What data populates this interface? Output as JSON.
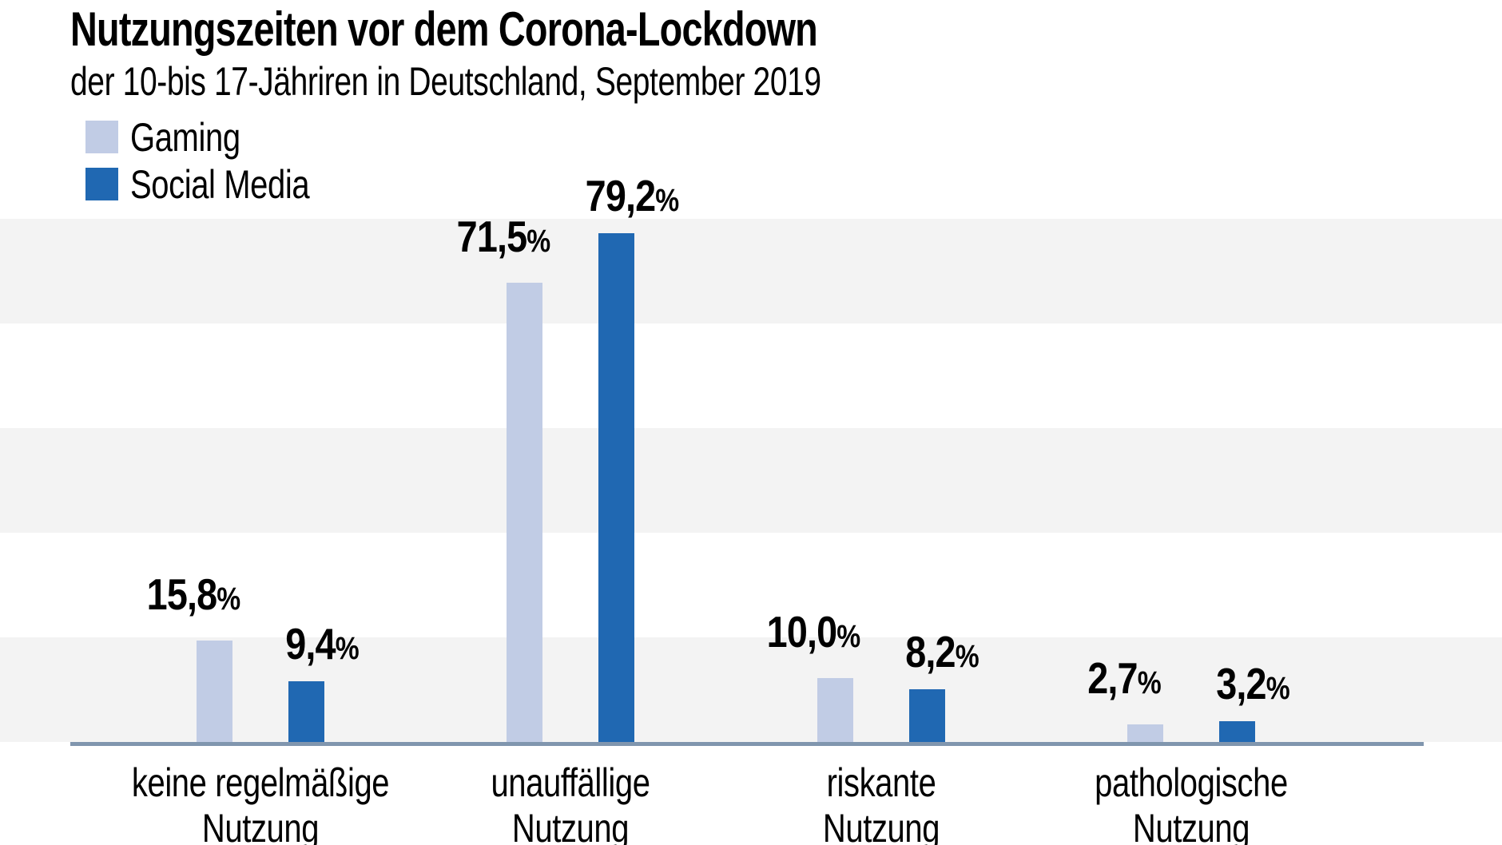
{
  "header": {
    "title": "Nutzungszeiten vor dem Corona-Lockdown",
    "subtitle": "der 10-bis 17-Jähriren in Deutschland, September 2019"
  },
  "legend": {
    "position": "top-left",
    "items": [
      {
        "label": "Gaming",
        "color": "#c1cce5"
      },
      {
        "label": "Social Media",
        "color": "#2068b2"
      }
    ]
  },
  "chart_data": {
    "type": "bar",
    "title": "Nutzungszeiten vor dem Corona-Lockdown",
    "subtitle": "der 10-bis 17-Jähriren in Deutschland, September 2019",
    "categories": [
      "keine regelmäßige\nNutzung",
      "unauffällige\nNutzung",
      "riskante\nNutzung",
      "pathologische\nNutzung"
    ],
    "series": [
      {
        "name": "Gaming",
        "color": "#c1cce5",
        "values": [
          15.8,
          71.5,
          10.0,
          2.7
        ],
        "labels": [
          "15,8%",
          "71,5%",
          "10,0%",
          "2,7%"
        ]
      },
      {
        "name": "Social Media",
        "color": "#2068b2",
        "values": [
          9.4,
          79.2,
          8.2,
          3.2
        ],
        "labels": [
          "9,4%",
          "79,2%",
          "8,2%",
          "3,2%"
        ]
      }
    ],
    "xlabel": "",
    "ylabel": "",
    "ylim": [
      0,
      81.5
    ],
    "grid": "horizontal-striped-bands",
    "band_color": "#f3f3f3",
    "axis_line_color": "#8096ae",
    "background": "#ffffff",
    "text_color": "#000000",
    "legend_position": "top-left"
  }
}
